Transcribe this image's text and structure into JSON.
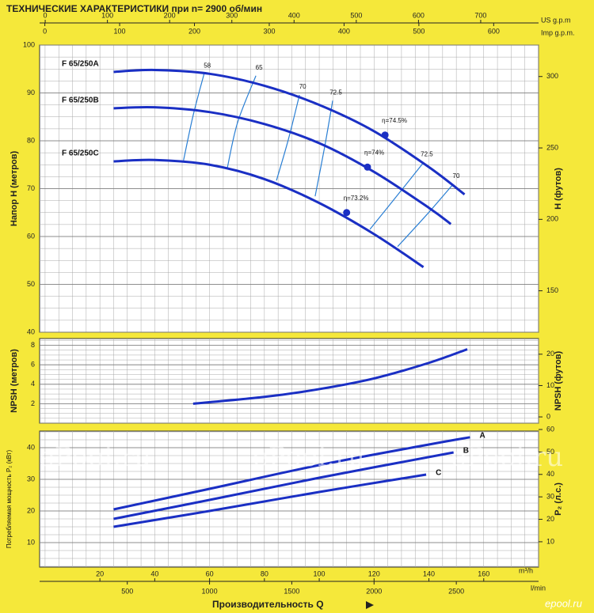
{
  "title": "ТЕХНИЧЕСКИЕ ХАРАКТЕРИСТИКИ при n= 2900 об/мин",
  "x_title": "Производительность  Q",
  "watermark": "ePool.ru",
  "logo": "epool.ru",
  "flow_axes": [
    {
      "label": "US g.p.m",
      "xlim": [
        -9,
        793
      ],
      "xticks": [
        0,
        100,
        200,
        300,
        400,
        500,
        600,
        700
      ]
    },
    {
      "label": "Imp g.p.m.",
      "xlim": [
        -7,
        660
      ],
      "xticks": [
        0,
        100,
        200,
        300,
        400,
        500,
        600
      ]
    },
    {
      "label": "m³/h",
      "xlim": [
        -2,
        180
      ],
      "xticks": [
        20,
        40,
        60,
        80,
        100,
        120,
        140,
        160
      ]
    },
    {
      "label": "l/min",
      "xlim": [
        -33,
        3000
      ],
      "xticks": [
        500,
        1000,
        1500,
        2000,
        2500
      ]
    }
  ],
  "chart_data": [
    {
      "type": "line",
      "ylabel": "Напор  H  (метров)",
      "y2label": "H  (футов)",
      "xlim": [
        -2,
        180
      ],
      "ylim": [
        40,
        100
      ],
      "yticks": [
        40,
        50,
        60,
        70,
        80,
        90,
        100
      ],
      "y2lim": [
        121,
        322
      ],
      "y2ticks": [
        150,
        200,
        250,
        300
      ],
      "grid": true,
      "legend": "start",
      "series": [
        {
          "name": "F 65/250A",
          "color": "#1a2fc4",
          "x": [
            25,
            40,
            60,
            80,
            100,
            120,
            140,
            153
          ],
          "values": [
            94.4,
            94.8,
            94,
            91.5,
            87.5,
            82,
            74.5,
            68.8
          ],
          "bep": {
            "x": 124,
            "y": 81.2,
            "label": "η=74.5%"
          }
        },
        {
          "name": "F 65/250B",
          "color": "#1a2fc4",
          "x": [
            25,
            40,
            60,
            80,
            100,
            120,
            140,
            148
          ],
          "values": [
            86.8,
            87,
            86,
            83.5,
            79.5,
            73.5,
            66,
            62.6
          ],
          "bep": {
            "x": 117.6,
            "y": 74.5,
            "label": "η=74%"
          }
        },
        {
          "name": "F 65/250C",
          "color": "#1a2fc4",
          "x": [
            25,
            40,
            60,
            80,
            100,
            120,
            138
          ],
          "values": [
            75.7,
            76,
            75,
            72,
            67,
            60.5,
            53.6
          ],
          "bep": {
            "x": 110,
            "y": 65,
            "label": "η=73.2%"
          }
        }
      ],
      "efficiency_color": "#2a7fd4",
      "efficiency_lines": [
        {
          "label": "58",
          "x": [
            58,
            54,
            50.5
          ],
          "values": [
            94,
            85.3,
            75.9
          ]
        },
        {
          "label": "65",
          "x": [
            76.9,
            70.2,
            66.5
          ],
          "values": [
            93.6,
            83.8,
            74.4
          ]
        },
        {
          "label": "70",
          "x": [
            92.8,
            88.7,
            84.4
          ],
          "values": [
            89.6,
            80.2,
            71.7
          ]
        },
        {
          "label": "72.5",
          "x": [
            104.9,
            102,
            98.5
          ],
          "values": [
            88.4,
            78.8,
            68.4
          ]
        },
        {
          "label": "72.5",
          "x": [
            138.1,
            128.9,
            118.5
          ],
          "values": [
            75.5,
            68.9,
            61.5
          ]
        },
        {
          "label": "70",
          "x": [
            148.8,
            139.6,
            128.6
          ],
          "values": [
            70.9,
            64.8,
            57.9
          ]
        }
      ]
    },
    {
      "type": "line",
      "ylabel": "NPSH  (метров)",
      "y2label": "NPSH  (футов)",
      "xlim": [
        -2,
        180
      ],
      "ylim": [
        0,
        8.7
      ],
      "yticks": [
        2,
        4,
        6,
        8
      ],
      "y2lim": [
        -2,
        25
      ],
      "y2ticks": [
        0,
        10,
        20
      ],
      "grid": true,
      "series": [
        {
          "color": "#1a2fc4",
          "x": [
            54,
            80,
            100,
            120,
            140,
            154
          ],
          "values": [
            2.0,
            2.7,
            3.5,
            4.6,
            6.2,
            7.6
          ]
        }
      ]
    },
    {
      "type": "line",
      "ylabel": "Потребляемая мощность  P₂  (кВт)",
      "y2label": "P₂  (л.с.)",
      "xlim": [
        -2,
        180
      ],
      "ylim": [
        2.25,
        45.25
      ],
      "yticks": [
        10,
        20,
        30,
        40
      ],
      "y2lim": [
        -1.3,
        59.3
      ],
      "y2ticks": [
        10,
        20,
        30,
        40,
        50,
        60
      ],
      "grid": true,
      "legend": "end",
      "series": [
        {
          "name": "A",
          "color": "#1a2fc4",
          "x": [
            25,
            60,
            100,
            140,
            155
          ],
          "values": [
            20.5,
            27,
            34.5,
            41,
            43.3
          ]
        },
        {
          "name": "B",
          "color": "#1a2fc4",
          "x": [
            25,
            60,
            100,
            149
          ],
          "values": [
            17.5,
            23.5,
            30.5,
            38.5
          ]
        },
        {
          "name": "C",
          "color": "#1a2fc4",
          "x": [
            25,
            60,
            100,
            139
          ],
          "values": [
            15,
            20,
            26,
            31.5
          ]
        }
      ]
    }
  ]
}
